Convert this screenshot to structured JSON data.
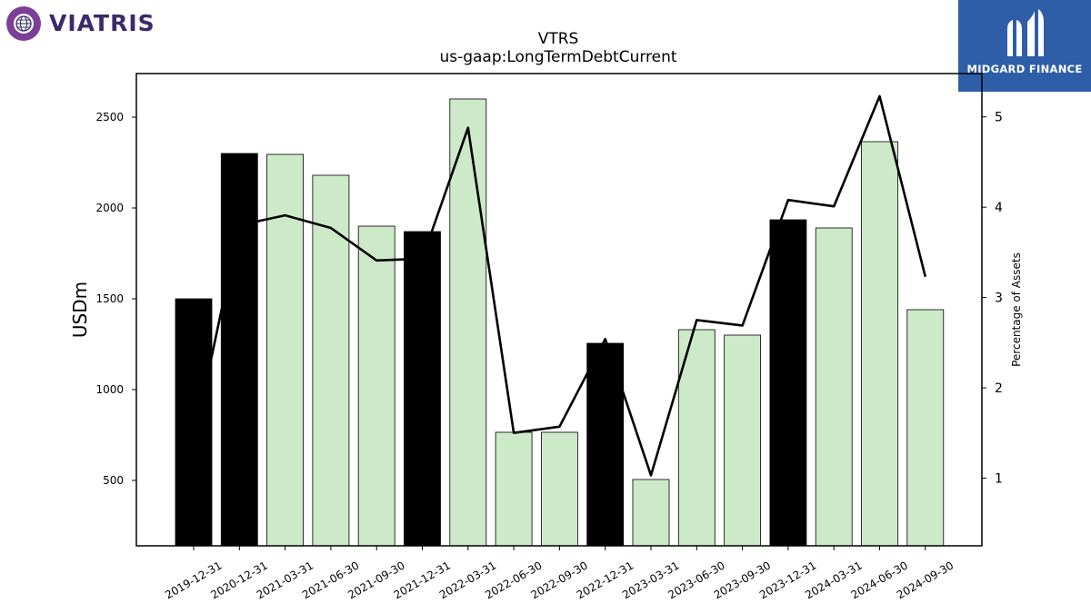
{
  "logos": {
    "left": {
      "text": "VIATRIS",
      "icon": "globe-swirl-icon"
    },
    "right": {
      "text": "MIDGARD FINANCE",
      "icon": "m-monogram-icon",
      "color": "#2f5ea8"
    }
  },
  "chart_data": {
    "type": "bar",
    "title": "VTRS",
    "subtitle": "us-gaap:LongTermDebtCurrent",
    "ylabel": "USDm",
    "y2label": "Percentage of Assets",
    "categories": [
      "2019-12-31",
      "2020-12-31",
      "2021-03-31",
      "2021-06-30",
      "2021-09-30",
      "2021-12-31",
      "2022-03-31",
      "2022-06-30",
      "2022-09-30",
      "2022-12-31",
      "2023-03-31",
      "2023-06-30",
      "2023-09-30",
      "2023-12-31",
      "2024-03-31",
      "2024-06-30",
      "2024-09-30"
    ],
    "series": [
      {
        "values": [
          1500,
          2300,
          2295,
          2180,
          1900,
          1870,
          2600,
          765,
          765,
          1255,
          505,
          1330,
          1300,
          1935,
          1890,
          2365,
          1440
        ],
        "annual": [
          true,
          true,
          false,
          false,
          false,
          true,
          false,
          false,
          false,
          true,
          false,
          false,
          false,
          true,
          false,
          false,
          false
        ],
        "axis": "left"
      },
      {
        "values": [
          1.4,
          3.8,
          3.91,
          3.77,
          3.41,
          3.43,
          4.88,
          1.5,
          1.57,
          2.54,
          1.03,
          2.75,
          2.69,
          4.08,
          4.01,
          5.23,
          3.23
        ],
        "axis": "right",
        "type": "line"
      }
    ],
    "ylim": [
      140,
      2740
    ],
    "y2lim": [
      0.25,
      5.48
    ],
    "yticks": [
      500,
      1000,
      1500,
      2000,
      2500
    ],
    "y2ticks": [
      1,
      2,
      3,
      4,
      5
    ],
    "colors": {
      "annual_bar": "#000000",
      "quarter_bar": "#cdeac8",
      "line": "#000000"
    },
    "grid": false
  }
}
